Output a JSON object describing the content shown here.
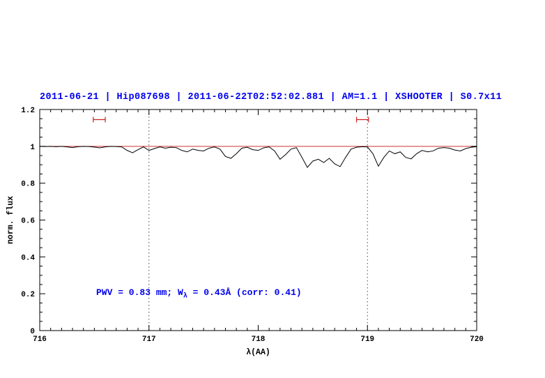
{
  "title": {
    "text": "2011-06-21 | Hip087698 | 2011-06-22T02:52:02.881 | AM=1.1 | XSHOOTER | S0.7x11"
  },
  "annotation": {
    "pre": "PWV = 0.83 mm; W",
    "sub": "λ",
    "post": " = 0.43Å (corr: 0.41)"
  },
  "colors": {
    "title": "#0000ee",
    "annotation": "#0000ee",
    "spectrum": "#000000",
    "continuum": "#cc3333",
    "marker": "#cc2222",
    "axis": "#000000",
    "vline": "#444444"
  },
  "chart_data": {
    "type": "line",
    "title": "2011-06-21 | Hip087698 | 2011-06-22T02:52:02.881 | AM=1.1 | XSHOOTER | S0.7x11",
    "xlabel": "λ(AA)",
    "ylabel": "norm. flux",
    "xlim": [
      716,
      720
    ],
    "ylim": [
      0,
      1.2
    ],
    "xticks": [
      716,
      717,
      718,
      719,
      720
    ],
    "yticks": [
      0,
      0.2,
      0.4,
      0.6,
      0.8,
      1,
      1.2
    ],
    "ytick_labels": [
      "0",
      "0.2",
      "0.4",
      "0.6",
      "0.8",
      "1",
      "1.2"
    ],
    "grid": "off",
    "legend": "none",
    "vlines": [
      717,
      719
    ],
    "annotation_text": "PWV = 0.83 mm; W_λ = 0.43Å (corr: 0.41)",
    "range_markers": [
      {
        "x1": 716.49,
        "x2": 716.6,
        "y": 1.145
      },
      {
        "x1": 718.9,
        "x2": 719.01,
        "y": 1.145
      }
    ],
    "series": [
      {
        "name": "spectrum",
        "color": "#000000",
        "x": [
          716.0,
          716.05,
          716.1,
          716.15,
          716.2,
          716.25,
          716.3,
          716.35,
          716.4,
          716.45,
          716.5,
          716.55,
          716.6,
          716.65,
          716.7,
          716.75,
          716.8,
          716.85,
          716.9,
          716.95,
          717.0,
          717.05,
          717.1,
          717.15,
          717.2,
          717.25,
          717.3,
          717.35,
          717.4,
          717.45,
          717.5,
          717.55,
          717.6,
          717.65,
          717.7,
          717.75,
          717.8,
          717.85,
          717.9,
          717.95,
          718.0,
          718.05,
          718.1,
          718.15,
          718.2,
          718.25,
          718.3,
          718.35,
          718.4,
          718.45,
          718.5,
          718.55,
          718.6,
          718.65,
          718.7,
          718.75,
          718.8,
          718.85,
          718.9,
          718.95,
          719.0,
          719.05,
          719.1,
          719.15,
          719.2,
          719.25,
          719.3,
          719.35,
          719.4,
          719.45,
          719.5,
          719.55,
          719.6,
          719.65,
          719.7,
          719.75,
          719.8,
          719.85,
          719.9,
          719.95,
          720.0
        ],
        "y": [
          1.0,
          0.999,
          1.0,
          0.998,
          1.0,
          0.997,
          0.993,
          0.998,
          1.0,
          0.999,
          0.996,
          0.992,
          0.997,
          1.0,
          0.999,
          0.997,
          0.978,
          0.965,
          0.982,
          0.997,
          0.978,
          0.988,
          0.997,
          0.99,
          0.995,
          0.993,
          0.978,
          0.97,
          0.985,
          0.978,
          0.975,
          0.99,
          0.997,
          0.985,
          0.945,
          0.935,
          0.96,
          0.99,
          0.995,
          0.982,
          0.978,
          0.992,
          0.997,
          0.975,
          0.93,
          0.955,
          0.985,
          0.993,
          0.94,
          0.886,
          0.92,
          0.93,
          0.912,
          0.935,
          0.905,
          0.89,
          0.94,
          0.985,
          0.995,
          0.998,
          0.997,
          0.96,
          0.892,
          0.94,
          0.975,
          0.96,
          0.97,
          0.94,
          0.932,
          0.96,
          0.978,
          0.97,
          0.975,
          0.99,
          0.993,
          0.99,
          0.98,
          0.975,
          0.988,
          0.995,
          0.998
        ]
      },
      {
        "name": "continuum",
        "color": "#cc3333",
        "x": [
          716,
          720
        ],
        "y": [
          1,
          1
        ]
      }
    ]
  }
}
